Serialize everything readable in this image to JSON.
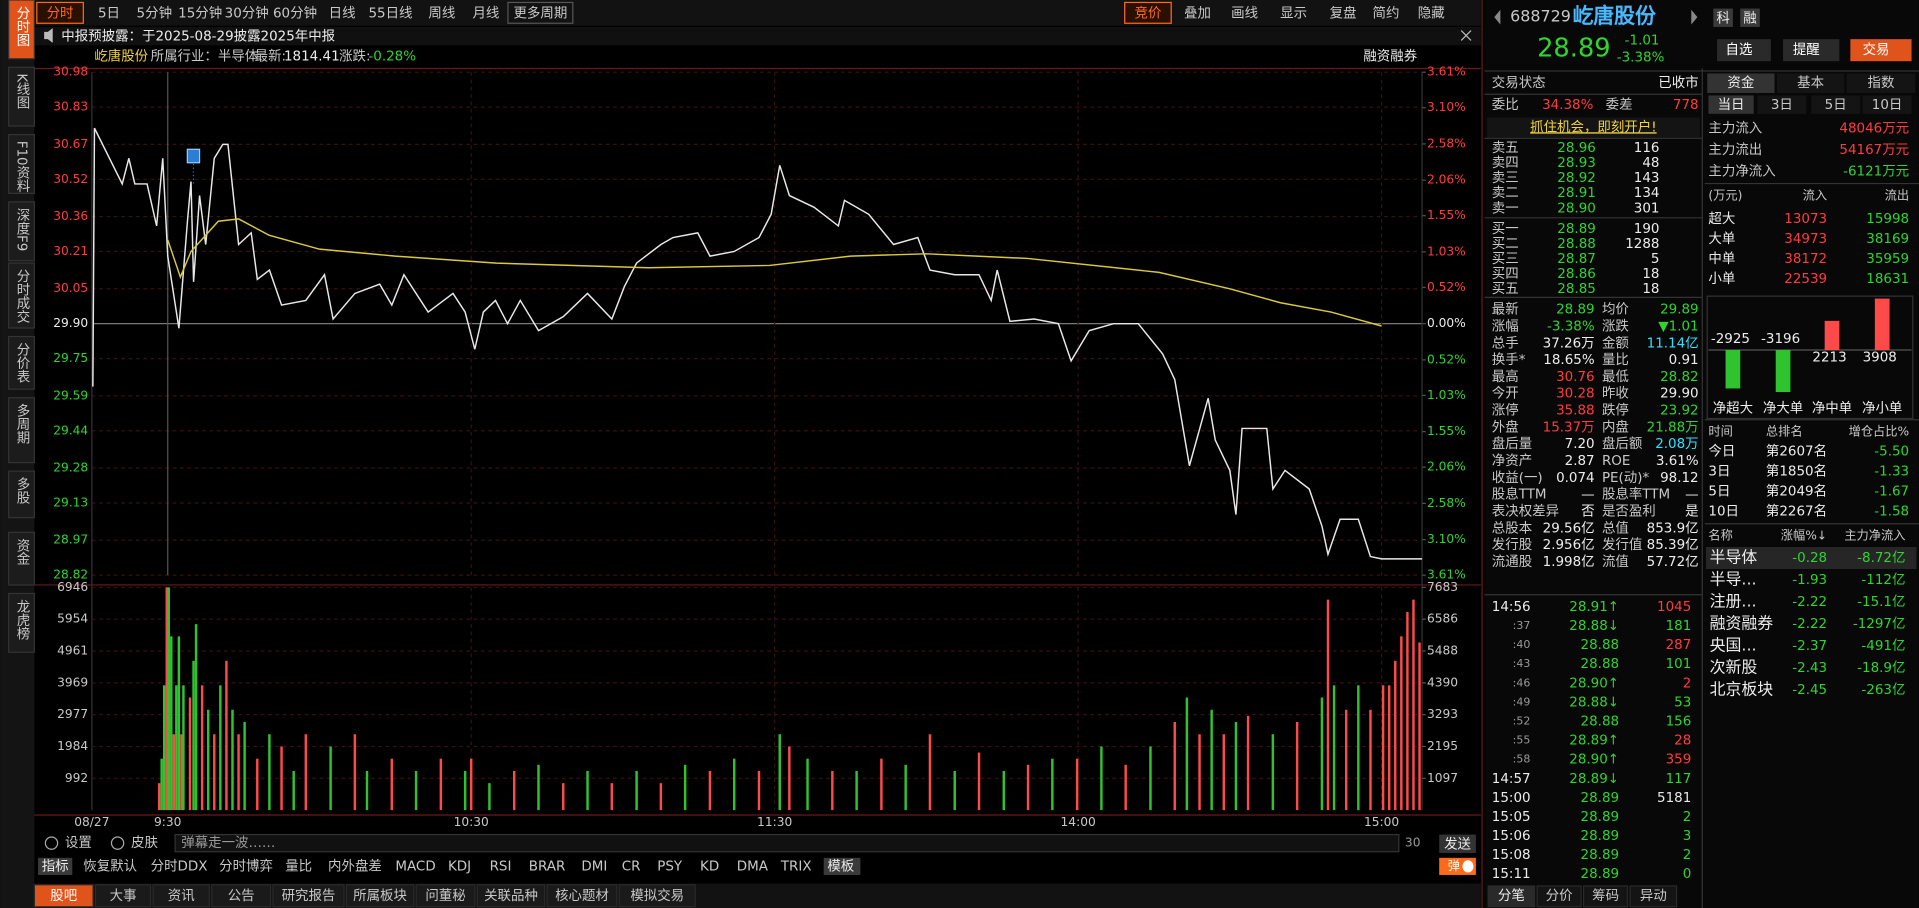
{
  "toolbar": {
    "periods": [
      "分时",
      "5日",
      "5分钟",
      "15分钟",
      "30分钟",
      "60分钟",
      "日线",
      "55日线",
      "周线",
      "月线",
      "更多周期"
    ],
    "right": [
      "竞价",
      "叠加",
      "画线",
      "显示",
      "复盘",
      "简约",
      "隐藏"
    ]
  },
  "side_tabs": [
    "分时图",
    "K线图",
    "F10资料",
    "深度F9",
    "分时成交",
    "分价表",
    "多周期",
    "多股",
    "资金",
    "龙虎榜"
  ],
  "notice": "中报预披露：于2025-08-29披露2025年中报",
  "info_bar": {
    "name": "屹唐股份",
    "industry": "所属行业：半导体",
    "latest_label": "最新:",
    "latest": "1814.41",
    "change_label": "涨跌:",
    "change": "-0.28%",
    "margin": "融资融券"
  },
  "chart_data": [
    {
      "type": "line",
      "xlim": [
        0,
        263
      ],
      "ylim": [
        28.82,
        30.98
      ],
      "yticks": [
        28.82,
        28.97,
        29.13,
        29.28,
        29.44,
        29.59,
        29.75,
        {
          "value": 29.9,
          "label": "29.90"
        },
        30.05,
        30.21,
        30.36,
        30.52,
        30.67,
        30.83,
        30.98
      ],
      "y2lim": [
        -3.61,
        3.61
      ],
      "y2ticks": [
        {
          "value": -3.61,
          "label": "3.61%"
        },
        {
          "value": -3.1,
          "label": "3.10%"
        },
        {
          "value": -2.58,
          "label": "2.58%"
        },
        {
          "value": -2.06,
          "label": "2.06%"
        },
        {
          "value": -1.55,
          "label": "1.55%"
        },
        {
          "value": -1.03,
          "label": "1.03%"
        },
        {
          "value": -0.52,
          "label": "0.52%"
        },
        {
          "value": 0,
          "label": "0.00%"
        },
        {
          "value": 0.52,
          "label": "0.52%"
        },
        {
          "value": 1.03,
          "label": "1.03%"
        },
        {
          "value": 1.55,
          "label": "1.55%"
        },
        {
          "value": 2.06,
          "label": "2.06%"
        },
        {
          "value": 2.58,
          "label": "2.58%"
        },
        {
          "value": 3.1,
          "label": "3.10%"
        },
        {
          "value": 3.61,
          "label": "3.61%"
        }
      ],
      "grid": true,
      "series": [
        {
          "color": "#e8e8e8",
          "x": [
            0.2,
            0.5,
            6.0,
            7.3,
            8.5,
            10.9,
            12.8,
            14.0,
            15.0,
            17.2,
            18.9,
            19.6,
            20.1,
            21.3,
            22.5,
            24.2,
            25.9,
            26.9,
            29.0,
            31.5,
            32.7,
            35.1,
            37.5,
            42.3,
            46.0,
            47.7,
            52.0,
            56.9,
            59.3,
            61.7,
            66.5,
            71.4,
            73.8,
            75.7,
            77.4,
            79.8,
            82.2,
            84.7,
            88.3,
            93.2,
            98.0,
            102.8,
            105.3,
            107.7,
            112.5,
            114.9,
            119.8,
            122.2,
            127.0,
            131.9,
            134.3,
            136.0,
            137.9,
            142.8,
            147.6,
            148.8,
            153.6,
            158.5,
            163.3,
            165.7,
            170.6,
            175.4,
            177.8,
            179.0,
            181.5,
            186.3,
            191.1,
            193.6,
            197.2,
            202.0,
            206.9,
            211.7,
            214.1,
            217.0,
            220.7,
            222.1,
            225.0,
            226.2,
            227.4,
            232.3,
            233.5,
            235.9,
            240.7,
            243.2,
            244.4,
            246.8,
            250.4,
            252.8,
            255.0,
            263.0
          ],
          "values": [
            29.63,
            30.74,
            30.5,
            30.61,
            30.5,
            30.5,
            30.32,
            30.61,
            30.19,
            29.88,
            30.34,
            30.51,
            30.08,
            30.45,
            30.24,
            30.61,
            30.67,
            30.67,
            30.24,
            30.29,
            30.09,
            30.13,
            29.98,
            30.0,
            30.11,
            29.92,
            30.03,
            30.07,
            29.98,
            30.11,
            29.95,
            30.03,
            29.95,
            29.79,
            29.95,
            30.0,
            29.9,
            30.0,
            29.87,
            29.93,
            30.03,
            29.92,
            30.06,
            30.16,
            30.24,
            30.27,
            30.29,
            30.19,
            30.21,
            30.27,
            30.37,
            30.58,
            30.45,
            30.4,
            30.32,
            30.43,
            30.37,
            30.24,
            30.27,
            30.13,
            30.11,
            30.11,
            30.0,
            30.13,
            29.91,
            29.92,
            29.9,
            29.74,
            29.87,
            29.9,
            29.9,
            29.77,
            29.66,
            29.29,
            29.58,
            29.4,
            29.27,
            29.08,
            29.45,
            29.45,
            29.19,
            29.27,
            29.19,
            29.03,
            28.91,
            29.06,
            29.06,
            28.9,
            28.89,
            28.89
          ]
        },
        {
          "color": "#d9c93a",
          "x": [
            15.0,
            17.5,
            19.6,
            25.0,
            29.0,
            35.0,
            45.0,
            60.0,
            80.0,
            110.0,
            134.0,
            150.0,
            165.0,
            185.0,
            211.0,
            225.0,
            235.0,
            245.0,
            255.0
          ],
          "values": [
            30.26,
            30.1,
            30.21,
            30.34,
            30.35,
            30.28,
            30.22,
            30.19,
            30.16,
            30.14,
            30.15,
            30.19,
            30.2,
            30.18,
            30.12,
            30.05,
            29.99,
            29.95,
            29.89
          ]
        }
      ]
    },
    {
      "type": "bar",
      "xlim": [
        0,
        263
      ],
      "ylim": [
        0,
        6946
      ],
      "yticks": [
        992,
        1984,
        2977,
        3969,
        4961,
        5954,
        6946
      ],
      "y2lim": [
        0,
        7683
      ],
      "y2ticks": [
        1097,
        2195,
        3293,
        4390,
        5488,
        6586,
        7683
      ],
      "xticks": [
        {
          "value": 0,
          "label": "08/27"
        },
        {
          "value": 15,
          "label": "9:30"
        },
        {
          "value": 75,
          "label": "10:30"
        },
        {
          "value": 135,
          "label": "11:30"
        },
        {
          "value": 195,
          "label": "14:00"
        },
        {
          "value": 255,
          "label": "15:00"
        }
      ],
      "grid": true,
      "series": [
        {
          "color": "#ff4a4a",
          "x": [
            13.3,
            14.8,
            16.2,
            17.7,
            19.4,
            21.8,
            24.2,
            26.6,
            29.0,
            32.7,
            37.5,
            42.3,
            52.0,
            59.3,
            69.0,
            75.0,
            83.5,
            93.2,
            102.8,
            112.5,
            122.2,
            131.9,
            137.9,
            146.4,
            156.1,
            165.7,
            175.4,
            185.1,
            194.8,
            204.4,
            214.1,
            219.0,
            223.8,
            228.6,
            238.3,
            244.4,
            248.0,
            252.8,
            255.3,
            256.5,
            257.7,
            258.9,
            260.1,
            261.3,
            262.5
          ],
          "values": [
            840,
            6946,
            2366,
            2366,
            3511,
            3892,
            2366,
            4656,
            2366,
            1603,
            1984,
            2366,
            2366,
            1603,
            1603,
            1603,
            1221,
            840,
            840,
            840,
            1221,
            1221,
            1984,
            1221,
            1603,
            2366,
            1794,
            1412,
            1603,
            1412,
            2748,
            2366,
            2366,
            2938,
            2748,
            6564,
            3129,
            3129,
            3892,
            3892,
            4656,
            5419,
            6182,
            6564,
            5228
          ]
        },
        {
          "color": "#2fc42f",
          "x": [
            13.8,
            14.3,
            15.2,
            15.7,
            16.7,
            17.2,
            18.1,
            20.1,
            20.6,
            23.0,
            25.4,
            27.8,
            30.2,
            35.1,
            39.9,
            47.2,
            54.4,
            64.1,
            73.8,
            78.6,
            88.3,
            98.0,
            107.7,
            117.3,
            127.0,
            136.0,
            141.5,
            151.2,
            160.9,
            170.6,
            180.3,
            189.9,
            199.6,
            209.3,
            216.5,
            221.4,
            226.2,
            233.5,
            243.2,
            245.6,
            250.4
          ],
          "values": [
            1603,
            3892,
            6946,
            5419,
            3892,
            5419,
            3892,
            4656,
            5800,
            3129,
            3892,
            3129,
            2748,
            2366,
            1221,
            1984,
            1221,
            1221,
            1221,
            840,
            1412,
            1221,
            1221,
            1412,
            1603,
            2366,
            1603,
            1221,
            1412,
            1221,
            1221,
            1603,
            1984,
            1984,
            3511,
            3129,
            2748,
            2366,
            3511,
            3892,
            3892
          ]
        }
      ]
    },
    {
      "type": "bar",
      "categories": [
        "净超大",
        "净大单",
        "净中单",
        "净小单"
      ],
      "values": [
        -2925,
        -3196,
        2213,
        3908
      ]
    }
  ],
  "chart_footer": {
    "settings": "设置",
    "skin": "皮肤",
    "danmaku": "弹幕走一波……",
    "count": "30",
    "send": "发送"
  },
  "indicator_tabs": [
    "指标",
    "恢复默认",
    "分时DDX",
    "分时博弈",
    "量比",
    "内外盘差",
    "MACD",
    "KDJ",
    "RSI",
    "BRAR",
    "DMI",
    "CR",
    "PSY",
    "KD",
    "DMA",
    "TRIX",
    "模板"
  ],
  "indicator_toggle": "弹",
  "bottom_tabs": [
    "股吧",
    "大事",
    "资讯",
    "公告",
    "研究报告",
    "所属板块",
    "问董秘",
    "关联品种",
    "核心题材",
    "模拟交易"
  ],
  "quote": {
    "code": "688729",
    "name": "屹唐股份",
    "price": "28.89",
    "change": "-1.01",
    "change_pct": "-3.38%",
    "badges": [
      "科",
      "融"
    ],
    "buttons": [
      "自选",
      "提醒",
      "交易"
    ],
    "status_label": "交易状态",
    "status": "已收市",
    "ratio": [
      "委比",
      "34.38%",
      "委差",
      "778"
    ],
    "banner": "抓住机会，即刻开户!",
    "asks": [
      [
        "卖五",
        "28.96",
        "116"
      ],
      [
        "卖四",
        "28.93",
        "48"
      ],
      [
        "卖三",
        "28.92",
        "143"
      ],
      [
        "卖二",
        "28.91",
        "134"
      ],
      [
        "卖一",
        "28.90",
        "301"
      ]
    ],
    "bids": [
      [
        "买一",
        "28.89",
        "190"
      ],
      [
        "买二",
        "28.88",
        "1288"
      ],
      [
        "买三",
        "28.87",
        "5"
      ],
      [
        "买四",
        "28.86",
        "18"
      ],
      [
        "买五",
        "28.85",
        "18"
      ]
    ],
    "stats": [
      [
        "最新",
        "28.89",
        "均价",
        "29.89"
      ],
      [
        "涨幅",
        "-3.38%",
        "涨跌",
        "▼1.01"
      ],
      [
        "总手",
        "37.26万",
        "金额",
        "11.14亿"
      ],
      [
        "换手*",
        "18.65%",
        "量比",
        "0.91"
      ],
      [
        "最高",
        "30.76",
        "最低",
        "28.82"
      ],
      [
        "今开",
        "30.28",
        "昨收",
        "29.90"
      ],
      [
        "涨停",
        "35.88",
        "跌停",
        "23.92"
      ],
      [
        "外盘",
        "15.37万",
        "内盘",
        "21.88万"
      ],
      [
        "盘后量",
        "7.20",
        "盘后额",
        "2.08万"
      ],
      [
        "净资产",
        "2.87",
        "ROE",
        "3.61%"
      ],
      [
        "收益(一)",
        "0.074",
        "PE(动)*",
        "98.12"
      ],
      [
        "股息TTM",
        "—",
        "股息率TTM",
        "—"
      ],
      [
        "表决权差异",
        "否",
        "是否盈利",
        "是"
      ],
      [
        "总股本",
        "29.56亿",
        "总值",
        "853.9亿"
      ],
      [
        "发行股",
        "2.956亿",
        "发行值",
        "85.39亿"
      ],
      [
        "流通股",
        "1.998亿",
        "流值",
        "57.72亿"
      ]
    ],
    "ticks": [
      {
        "time": "14:56",
        "price": "28.91↑",
        "volume": "1045",
        "color": "#ff3c3c"
      },
      {
        "time": ":37",
        "price": "28.88↓",
        "volume": "181",
        "color": "#2fd42f"
      },
      {
        "time": ":40",
        "price": "28.88",
        "volume": "287",
        "color": "#ff3c3c"
      },
      {
        "time": ":43",
        "price": "28.88",
        "volume": "101",
        "color": "#2fd42f"
      },
      {
        "time": ":46",
        "price": "28.90↑",
        "volume": "2",
        "color": "#ff3c3c"
      },
      {
        "time": ":49",
        "price": "28.88↓",
        "volume": "53",
        "color": "#2fd42f"
      },
      {
        "time": ":52",
        "price": "28.88",
        "volume": "156",
        "color": "#2fd42f"
      },
      {
        "time": ":55",
        "price": "28.89↑",
        "volume": "28",
        "color": "#ff3c3c"
      },
      {
        "time": ":58",
        "price": "28.90↑",
        "volume": "359",
        "color": "#ff3c3c"
      },
      {
        "time": "14:57",
        "price": "28.89↓",
        "volume": "117",
        "color": "#2fd42f"
      },
      {
        "time": "15:00",
        "price": "28.89",
        "volume": "5181",
        "color": "#e8e8e8"
      },
      {
        "time": "15:05",
        "price": "28.89",
        "volume": "2",
        "color": "#2fd42f"
      },
      {
        "time": "15:06",
        "price": "28.89",
        "volume": "3",
        "color": "#2fd42f"
      },
      {
        "time": "15:08",
        "price": "28.89",
        "volume": "2",
        "color": "#2fd42f"
      },
      {
        "time": "15:11",
        "price": "28.89",
        "volume": "0",
        "color": "#2fd42f"
      }
    ],
    "tabs": [
      "分笔",
      "分价",
      "筹码",
      "异动"
    ]
  },
  "funds": {
    "tabs": [
      "资金",
      "基本",
      "指数"
    ],
    "periods": [
      "当日",
      "3日",
      "5日",
      "10日"
    ],
    "main": [
      [
        "主力流入",
        "48046万元"
      ],
      [
        "主力流出",
        "54167万元"
      ],
      [
        "主力净流入",
        "-6121万元"
      ]
    ],
    "flow_header": [
      "(万元)",
      "流入",
      "流出"
    ],
    "flow_rows": [
      [
        "超大",
        "13073",
        "15998"
      ],
      [
        "大单",
        "34973",
        "38169"
      ],
      [
        "中单",
        "38172",
        "35959"
      ],
      [
        "小单",
        "22539",
        "18631"
      ]
    ],
    "rank_header": [
      "时间",
      "总排名",
      "增仓占比%"
    ],
    "rank_rows": [
      [
        "今日",
        "第2607名",
        "-5.50"
      ],
      [
        "3日",
        "第1850名",
        "-1.33"
      ],
      [
        "5日",
        "第2049名",
        "-1.67"
      ],
      [
        "10日",
        "第2267名",
        "-1.58"
      ]
    ],
    "sector_header": [
      "名称",
      "涨幅%↓",
      "主力净流入"
    ],
    "sector_rows": [
      [
        "半导体",
        "-0.28",
        "-8.72亿"
      ],
      [
        "半导...",
        "-1.93",
        "-112亿"
      ],
      [
        "注册...",
        "-2.22",
        "-15.1亿"
      ],
      [
        "融资融券",
        "-2.22",
        "-1297亿"
      ],
      [
        "央国...",
        "-2.37",
        "-491亿"
      ],
      [
        "次新股",
        "-2.43",
        "-18.9亿"
      ],
      [
        "北京板块",
        "-2.45",
        "-263亿"
      ]
    ]
  }
}
